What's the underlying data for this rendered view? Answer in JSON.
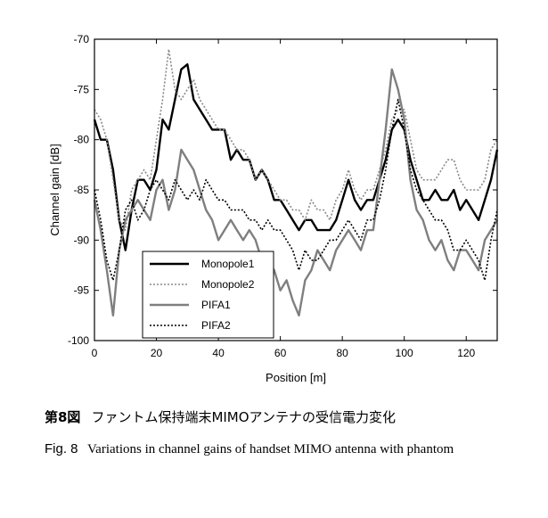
{
  "chart_data": {
    "type": "line",
    "xlabel": "Position [m]",
    "ylabel": "Channel gain [dB]",
    "xlim": [
      0,
      130
    ],
    "ylim": [
      -100,
      -70
    ],
    "xticks": [
      0,
      20,
      40,
      60,
      80,
      100,
      120
    ],
    "yticks": [
      -70,
      -75,
      -80,
      -85,
      -90,
      -95,
      -100
    ],
    "grid": false,
    "legend_position": "bottom-left",
    "series": [
      {
        "name": "Monopole1",
        "color": "#000000",
        "style": "solid",
        "x": [
          0,
          2,
          4,
          6,
          8,
          10,
          12,
          14,
          16,
          18,
          20,
          22,
          24,
          26,
          28,
          30,
          32,
          34,
          36,
          38,
          40,
          42,
          44,
          46,
          48,
          50,
          52,
          54,
          56,
          58,
          60,
          62,
          64,
          66,
          68,
          70,
          72,
          74,
          76,
          78,
          80,
          82,
          84,
          86,
          88,
          90,
          92,
          94,
          96,
          98,
          100,
          102,
          104,
          106,
          108,
          110,
          112,
          114,
          116,
          118,
          120,
          122,
          124,
          126,
          128,
          130
        ],
        "y": [
          -78,
          -80,
          -80,
          -83,
          -88,
          -91,
          -87,
          -84,
          -84,
          -85,
          -83,
          -78,
          -79,
          -76,
          -73,
          -72.5,
          -76,
          -77,
          -78,
          -79,
          -79,
          -79,
          -82,
          -81,
          -82,
          -82,
          -84,
          -83,
          -84,
          -86,
          -86,
          -87,
          -88,
          -89,
          -88,
          -88,
          -89,
          -89,
          -89,
          -88,
          -86,
          -84,
          -86,
          -87,
          -86,
          -86,
          -84,
          -82,
          -79,
          -78,
          -79,
          -82,
          -84,
          -86,
          -86,
          -85,
          -86,
          -86,
          -85,
          -87,
          -86,
          -87,
          -88,
          -86,
          -84,
          -81
        ]
      },
      {
        "name": "Monopole2",
        "color": "#888888",
        "style": "dotted",
        "x": [
          0,
          2,
          4,
          6,
          8,
          10,
          12,
          14,
          16,
          18,
          20,
          22,
          24,
          26,
          28,
          30,
          32,
          34,
          36,
          38,
          40,
          42,
          44,
          46,
          48,
          50,
          52,
          54,
          56,
          58,
          60,
          62,
          64,
          66,
          68,
          70,
          72,
          74,
          76,
          78,
          80,
          82,
          84,
          86,
          88,
          90,
          92,
          94,
          96,
          98,
          100,
          102,
          104,
          106,
          108,
          110,
          112,
          114,
          116,
          118,
          120,
          122,
          124,
          126,
          128,
          130
        ],
        "y": [
          -77,
          -78,
          -80,
          -84,
          -88,
          -89,
          -85,
          -84,
          -83,
          -84,
          -80,
          -76,
          -71,
          -75,
          -76,
          -75,
          -74,
          -76,
          -77,
          -78,
          -79,
          -79,
          -80,
          -81,
          -81,
          -82,
          -84,
          -83,
          -84,
          -85,
          -86,
          -86,
          -87,
          -87,
          -88,
          -86,
          -87,
          -87,
          -88,
          -86,
          -85,
          -83,
          -85,
          -86,
          -85,
          -85,
          -83,
          -81,
          -78,
          -77,
          -77,
          -80,
          -83,
          -84,
          -84,
          -84,
          -83,
          -82,
          -82,
          -84,
          -85,
          -85,
          -85,
          -84,
          -81,
          -80
        ]
      },
      {
        "name": "PIFA1",
        "color": "#7f7f7f",
        "style": "solid",
        "x": [
          0,
          2,
          4,
          6,
          8,
          10,
          12,
          14,
          16,
          18,
          20,
          22,
          24,
          26,
          28,
          30,
          32,
          34,
          36,
          38,
          40,
          42,
          44,
          46,
          48,
          50,
          52,
          54,
          56,
          58,
          60,
          62,
          64,
          66,
          68,
          70,
          72,
          74,
          76,
          78,
          80,
          82,
          84,
          86,
          88,
          90,
          92,
          94,
          96,
          98,
          100,
          102,
          104,
          106,
          108,
          110,
          112,
          114,
          116,
          118,
          120,
          122,
          124,
          126,
          128,
          130
        ],
        "y": [
          -86,
          -89,
          -93,
          -97.5,
          -91,
          -88,
          -87,
          -86,
          -87,
          -88,
          -85,
          -84,
          -87,
          -85,
          -81,
          -82,
          -83,
          -85,
          -87,
          -88,
          -90,
          -89,
          -88,
          -89,
          -90,
          -89,
          -90,
          -92,
          -92,
          -93,
          -95,
          -94,
          -96,
          -97.5,
          -94,
          -93,
          -91,
          -92,
          -93,
          -91,
          -90,
          -89,
          -90,
          -91,
          -89,
          -89,
          -84,
          -79,
          -73,
          -75,
          -78,
          -84,
          -87,
          -88,
          -90,
          -91,
          -90,
          -92,
          -93,
          -91,
          -91,
          -92,
          -93,
          -90,
          -89,
          -88
        ]
      },
      {
        "name": "PIFA2",
        "color": "#000000",
        "style": "dotted",
        "x": [
          0,
          2,
          4,
          6,
          8,
          10,
          12,
          14,
          16,
          18,
          20,
          22,
          24,
          26,
          28,
          30,
          32,
          34,
          36,
          38,
          40,
          42,
          44,
          46,
          48,
          50,
          52,
          54,
          56,
          58,
          60,
          62,
          64,
          66,
          68,
          70,
          72,
          74,
          76,
          78,
          80,
          82,
          84,
          86,
          88,
          90,
          92,
          94,
          96,
          98,
          100,
          102,
          104,
          106,
          108,
          110,
          112,
          114,
          116,
          118,
          120,
          122,
          124,
          126,
          128,
          130
        ],
        "y": [
          -85,
          -88,
          -92,
          -94,
          -91,
          -87,
          -86,
          -88,
          -87,
          -85,
          -84,
          -85,
          -86,
          -84,
          -85,
          -86,
          -85,
          -86,
          -84,
          -85,
          -86,
          -86,
          -87,
          -87,
          -87,
          -88,
          -88,
          -89,
          -88,
          -89,
          -89,
          -90,
          -91,
          -93,
          -91,
          -92,
          -92,
          -91,
          -90,
          -90,
          -89,
          -88,
          -89,
          -90,
          -88,
          -88,
          -86,
          -83,
          -79,
          -76,
          -79,
          -83,
          -85,
          -86,
          -87,
          -88,
          -88,
          -89,
          -91,
          -91,
          -90,
          -91,
          -92,
          -94,
          -90,
          -87
        ]
      }
    ]
  },
  "caption": {
    "jp_num": "第8図",
    "jp_text": "ファントム保持端末MIMOアンテナの受信電力変化",
    "en_num": "Fig. 8",
    "en_text": "Variations in channel gains of handset MIMO antenna with phantom"
  }
}
